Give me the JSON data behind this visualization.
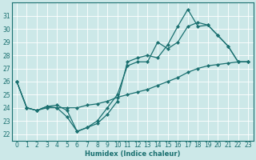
{
  "xlabel": "Humidex (Indice chaleur)",
  "xlim": [
    -0.5,
    23.5
  ],
  "ylim": [
    21.5,
    32
  ],
  "yticks": [
    22,
    23,
    24,
    25,
    26,
    27,
    28,
    29,
    30,
    31
  ],
  "xticks": [
    0,
    1,
    2,
    3,
    4,
    5,
    6,
    7,
    8,
    9,
    10,
    11,
    12,
    13,
    14,
    15,
    16,
    17,
    18,
    19,
    20,
    21,
    22,
    23
  ],
  "bg_color": "#cce8e8",
  "line_color": "#1a7070",
  "grid_color": "#ffffff",
  "line1_y": [
    26,
    24,
    23.8,
    24.1,
    24.0,
    23.3,
    22.2,
    22.5,
    22.8,
    23.5,
    24.5,
    27.5,
    27.8,
    28.0,
    27.8,
    28.8,
    30.2,
    31.5,
    30.2,
    30.3,
    29.5,
    28.7,
    27.5,
    27.5
  ],
  "line2_y": [
    26,
    24,
    23.8,
    24.1,
    24.2,
    23.8,
    22.2,
    22.5,
    23.0,
    24.0,
    25.0,
    27.2,
    27.5,
    27.5,
    29.0,
    28.5,
    29.0,
    30.2,
    30.5,
    30.3,
    29.5,
    28.7,
    27.5,
    27.5
  ],
  "line3_y": [
    26,
    24,
    23.8,
    24.0,
    24.0,
    24.0,
    24.0,
    24.2,
    24.3,
    24.5,
    24.8,
    25.0,
    25.2,
    25.4,
    25.7,
    26.0,
    26.3,
    26.7,
    27.0,
    27.2,
    27.3,
    27.4,
    27.5,
    27.5
  ],
  "markersize": 2.5,
  "linewidth": 0.9,
  "xlabel_fontsize": 6.0,
  "tick_fontsize": 5.5
}
